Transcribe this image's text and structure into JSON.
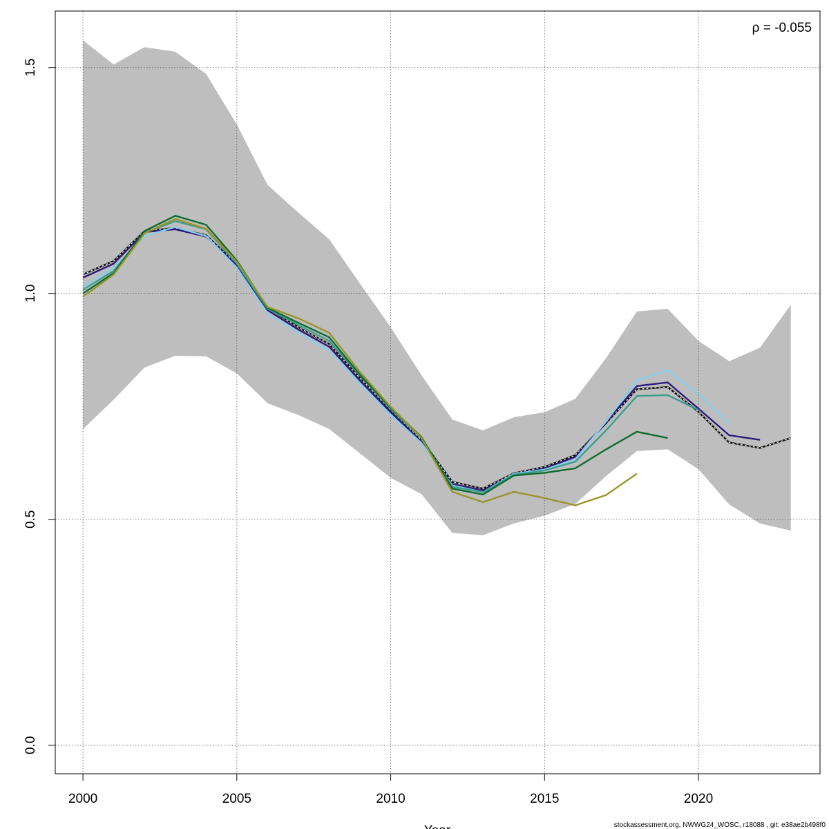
{
  "chart_data": {
    "type": "line",
    "xlabel": "Year",
    "ylabel": "",
    "xlim": [
      1999.1,
      2023.95
    ],
    "ylim": [
      -0.063,
      1.625
    ],
    "x_ticks": [
      2000,
      2005,
      2010,
      2015,
      2020
    ],
    "x_tick_labels": [
      "2000",
      "2005",
      "2010",
      "2015",
      "2020"
    ],
    "y_ticks": [
      0.0,
      0.5,
      1.0,
      1.5
    ],
    "y_tick_labels": [
      "0.0",
      "0.5",
      "1.0",
      "1.5"
    ],
    "grid": true,
    "annotation": "ρ = -0.055",
    "footer": "stockassessment.org, NWWG24_WOSC, r18088 , git: e38ae2b498f0",
    "confidence_band": {
      "color": "#bebebe",
      "x": [
        2000,
        2001,
        2002,
        2003,
        2004,
        2005,
        2006,
        2007,
        2008,
        2009,
        2010,
        2011,
        2012,
        2013,
        2014,
        2015,
        2016,
        2017,
        2018,
        2019,
        2020,
        2021,
        2022,
        2023
      ],
      "lower": [
        0.7,
        0.765,
        0.836,
        0.862,
        0.861,
        0.823,
        0.757,
        0.731,
        0.7,
        0.646,
        0.592,
        0.556,
        0.47,
        0.465,
        0.491,
        0.508,
        0.534,
        0.596,
        0.651,
        0.655,
        0.611,
        0.533,
        0.491,
        0.475
      ],
      "upper": [
        1.56,
        1.507,
        1.545,
        1.535,
        1.486,
        1.374,
        1.24,
        1.179,
        1.12,
        1.022,
        0.925,
        0.819,
        0.721,
        0.697,
        0.726,
        0.737,
        0.767,
        0.857,
        0.96,
        0.966,
        0.895,
        0.85,
        0.88,
        0.975
      ]
    },
    "series": [
      {
        "color": "#000000",
        "dashed_overlay": true,
        "x": [
          2000,
          2001,
          2002,
          2003,
          2004,
          2005,
          2006,
          2007,
          2008,
          2009,
          2010,
          2011,
          2012,
          2013,
          2014,
          2015,
          2016,
          2017,
          2018,
          2019,
          2020,
          2021,
          2022,
          2023
        ],
        "values": [
          1.042,
          1.072,
          1.138,
          1.145,
          1.129,
          1.065,
          0.968,
          0.925,
          0.888,
          0.813,
          0.742,
          0.676,
          0.583,
          0.568,
          0.602,
          0.616,
          0.642,
          0.713,
          0.788,
          0.793,
          0.738,
          0.67,
          0.658,
          0.68
        ]
      },
      {
        "color": "#2e1a7a",
        "x": [
          2000,
          2001,
          2002,
          2003,
          2004,
          2005,
          2006,
          2007,
          2008,
          2009,
          2010,
          2011,
          2012,
          2013,
          2014,
          2015,
          2016,
          2017,
          2018,
          2019,
          2020,
          2021,
          2022
        ],
        "values": [
          1.035,
          1.066,
          1.136,
          1.142,
          1.126,
          1.062,
          0.963,
          0.92,
          0.882,
          0.807,
          0.737,
          0.672,
          0.578,
          0.564,
          0.6,
          0.613,
          0.638,
          0.715,
          0.795,
          0.803,
          0.745,
          0.686,
          0.676
        ]
      },
      {
        "color": "#87ceeb",
        "x": [
          2000,
          2001,
          2002,
          2003,
          2004,
          2005,
          2006,
          2007,
          2008,
          2009,
          2010,
          2011,
          2012,
          2013,
          2014,
          2015,
          2016,
          2017,
          2018,
          2019,
          2020,
          2021
        ],
        "values": [
          1.015,
          1.057,
          1.127,
          1.147,
          1.127,
          1.057,
          0.955,
          0.913,
          0.873,
          0.8,
          0.731,
          0.669,
          0.575,
          0.56,
          0.601,
          0.61,
          0.633,
          0.717,
          0.808,
          0.83,
          0.777,
          0.712
        ]
      },
      {
        "color": "#3a9e8f",
        "x": [
          2000,
          2001,
          2002,
          2003,
          2004,
          2005,
          2006,
          2007,
          2008,
          2009,
          2010,
          2011,
          2012,
          2013,
          2014,
          2015,
          2016,
          2017,
          2018,
          2019,
          2020
        ],
        "values": [
          1.008,
          1.05,
          1.134,
          1.16,
          1.142,
          1.066,
          0.966,
          0.93,
          0.895,
          0.818,
          0.744,
          0.679,
          0.572,
          0.56,
          0.599,
          0.608,
          0.628,
          0.697,
          0.773,
          0.775,
          0.742
        ]
      },
      {
        "color": "#0e6b2e",
        "x": [
          2000,
          2001,
          2002,
          2003,
          2004,
          2005,
          2006,
          2007,
          2008,
          2009,
          2010,
          2011,
          2012,
          2013,
          2014,
          2015,
          2016,
          2017,
          2018,
          2019
        ],
        "values": [
          1.0,
          1.045,
          1.138,
          1.172,
          1.152,
          1.073,
          0.968,
          0.935,
          0.903,
          0.82,
          0.747,
          0.682,
          0.568,
          0.555,
          0.597,
          0.603,
          0.613,
          0.655,
          0.694,
          0.68
        ]
      },
      {
        "color": "#999428",
        "x": [
          2000,
          2001,
          2002,
          2003,
          2004,
          2005,
          2006,
          2007,
          2008,
          2009,
          2010,
          2011,
          2012,
          2013,
          2014,
          2015,
          2016,
          2017,
          2018
        ],
        "values": [
          0.993,
          1.042,
          1.133,
          1.165,
          1.143,
          1.07,
          0.97,
          0.945,
          0.913,
          0.826,
          0.749,
          0.68,
          0.561,
          0.538,
          0.561,
          0.547,
          0.531,
          0.554,
          0.601
        ]
      }
    ]
  }
}
